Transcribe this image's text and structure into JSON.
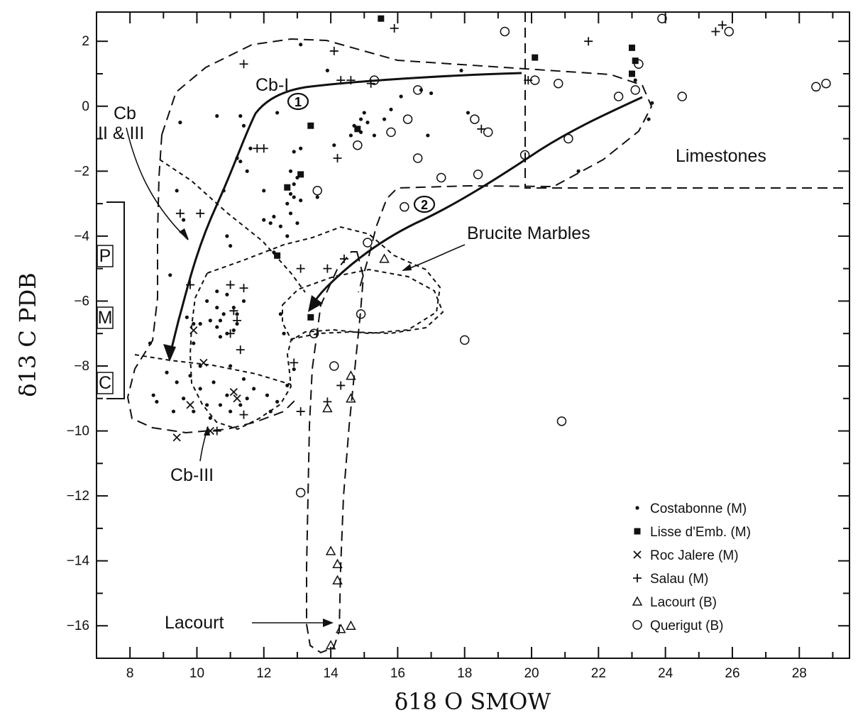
{
  "chart_data": {
    "type": "scatter",
    "xlabel": "δ18 O SMOW",
    "ylabel": "δ13 C PDB",
    "xlim": [
      7,
      29.5
    ],
    "ylim": [
      -17,
      2.9
    ],
    "x_ticks": [
      8,
      10,
      12,
      14,
      16,
      18,
      20,
      22,
      24,
      26,
      28
    ],
    "y_ticks": [
      2,
      0,
      -2,
      -4,
      -6,
      -8,
      -10,
      -12,
      -14,
      -16
    ],
    "grid": false,
    "legend_position": "bottom-right",
    "legend": [
      {
        "label": "Costabonne (M)",
        "marker": "dot"
      },
      {
        "label": "Lisse d'Emb. (M)",
        "marker": "square"
      },
      {
        "label": "Roc Jalere (M)",
        "marker": "x"
      },
      {
        "label": "Salau (M)",
        "marker": "plus"
      },
      {
        "label": "Lacourt (B)",
        "marker": "triangle"
      },
      {
        "label": "Querigut (B)",
        "marker": "circle"
      }
    ],
    "annotations": {
      "cb1": "Cb-I",
      "cb23_line1": "Cb",
      "cb23_line2": "II & III",
      "cb3": "Cb-III",
      "limestones": "Limestones",
      "brucite": "Brucite Marbles",
      "lacourt": "Lacourt",
      "trend1": "1",
      "trend2": "2",
      "p": "P",
      "m": "M",
      "c": "C"
    },
    "series": [
      {
        "name": "Costabonne (M)",
        "marker": "dot",
        "points": [
          [
            13.1,
            1.9
          ],
          [
            13.9,
            1.1
          ],
          [
            11.4,
            -0.6
          ],
          [
            10.6,
            -0.3
          ],
          [
            11.3,
            -0.3
          ],
          [
            9.5,
            -0.5
          ],
          [
            12.4,
            -0.2
          ],
          [
            11.6,
            -1.3
          ],
          [
            11.3,
            -1.7
          ],
          [
            11.5,
            -2.0
          ],
          [
            11.2,
            -1.6
          ],
          [
            10.8,
            -2.6
          ],
          [
            9.4,
            -2.6
          ],
          [
            9.6,
            -3.5
          ],
          [
            12.0,
            -3.5
          ],
          [
            12.2,
            -3.6
          ],
          [
            12.3,
            -3.4
          ],
          [
            12.7,
            -3.0
          ],
          [
            12.9,
            -2.4
          ],
          [
            13.0,
            -2.2
          ],
          [
            12.8,
            -2.0
          ],
          [
            13.1,
            -2.9
          ],
          [
            12.8,
            -3.3
          ],
          [
            13.0,
            -3.6
          ],
          [
            12.9,
            -2.8
          ],
          [
            12.8,
            -2.7
          ],
          [
            12.5,
            -3.7
          ],
          [
            12.0,
            -2.6
          ],
          [
            11.0,
            -4.3
          ],
          [
            10.9,
            -4.0
          ],
          [
            12.3,
            -4.5
          ],
          [
            12.7,
            -4.0
          ],
          [
            13.1,
            -1.3
          ],
          [
            12.9,
            -1.4
          ],
          [
            14.1,
            -1.2
          ],
          [
            14.7,
            -0.6
          ],
          [
            14.9,
            -0.4
          ],
          [
            15.1,
            -0.5
          ],
          [
            15.3,
            -0.9
          ],
          [
            14.9,
            -0.8
          ],
          [
            15.6,
            -0.4
          ],
          [
            14.6,
            -0.9
          ],
          [
            15.0,
            -0.2
          ],
          [
            15.8,
            -0.1
          ],
          [
            16.1,
            0.3
          ],
          [
            16.7,
            0.5
          ],
          [
            17.0,
            0.4
          ],
          [
            16.9,
            -0.9
          ],
          [
            17.9,
            1.1
          ],
          [
            18.1,
            -0.2
          ],
          [
            23.1,
            0.8
          ],
          [
            23.6,
            0.1
          ],
          [
            23.5,
            -0.4
          ],
          [
            21.4,
            -2.0
          ],
          [
            13.6,
            -2.8
          ],
          [
            9.2,
            -5.2
          ],
          [
            9.7,
            -6.5
          ],
          [
            9.9,
            -7.3
          ],
          [
            10.1,
            -6.7
          ],
          [
            10.6,
            -6.2
          ],
          [
            10.7,
            -6.6
          ],
          [
            10.9,
            -7.0
          ],
          [
            11.1,
            -6.9
          ],
          [
            10.7,
            -7.1
          ],
          [
            11.1,
            -6.2
          ],
          [
            11.2,
            -6.7
          ],
          [
            10.9,
            -5.8
          ],
          [
            11.4,
            -6.0
          ],
          [
            10.3,
            -6.0
          ],
          [
            10.6,
            -5.7
          ],
          [
            10.4,
            -6.6
          ],
          [
            11.2,
            -6.4
          ],
          [
            10.8,
            -6.4
          ],
          [
            9.9,
            -6.7
          ],
          [
            10.6,
            -6.8
          ],
          [
            12.5,
            -6.4
          ],
          [
            12.6,
            -7.0
          ],
          [
            8.6,
            -7.3
          ],
          [
            8.7,
            -8.9
          ],
          [
            8.8,
            -9.1
          ],
          [
            9.1,
            -8.2
          ],
          [
            9.4,
            -8.5
          ],
          [
            9.8,
            -8.3
          ],
          [
            10.1,
            -8.7
          ],
          [
            10.3,
            -9.2
          ],
          [
            9.3,
            -9.4
          ],
          [
            9.9,
            -9.4
          ],
          [
            10.5,
            -8.5
          ],
          [
            10.7,
            -9.2
          ],
          [
            11.0,
            -9.4
          ],
          [
            11.3,
            -9.2
          ],
          [
            11.7,
            -8.7
          ],
          [
            12.1,
            -8.9
          ],
          [
            12.2,
            -9.4
          ],
          [
            12.7,
            -8.6
          ],
          [
            12.9,
            -8.1
          ],
          [
            11.5,
            -9.0
          ],
          [
            10.1,
            -8.0
          ],
          [
            9.6,
            -9.0
          ],
          [
            11.0,
            -8.0
          ],
          [
            11.4,
            -8.4
          ],
          [
            10.4,
            -9.6
          ],
          [
            10.9,
            -8.9
          ],
          [
            12.4,
            -9.1
          ]
        ]
      },
      {
        "name": "Lisse d'Emb. (M)",
        "marker": "square",
        "points": [
          [
            15.5,
            2.7
          ],
          [
            20.1,
            1.5
          ],
          [
            23.0,
            1.8
          ],
          [
            23.1,
            1.4
          ],
          [
            23.0,
            1.0
          ],
          [
            13.4,
            -0.6
          ],
          [
            13.1,
            -2.1
          ],
          [
            14.8,
            -0.7
          ],
          [
            12.7,
            -2.5
          ],
          [
            12.4,
            -4.6
          ],
          [
            13.4,
            -6.5
          ]
        ]
      },
      {
        "name": "Roc Jalere (M)",
        "marker": "x",
        "points": [
          [
            9.9,
            -6.9
          ],
          [
            10.2,
            -7.9
          ],
          [
            11.1,
            -8.8
          ],
          [
            11.2,
            -9.0
          ],
          [
            9.8,
            -9.2
          ],
          [
            10.4,
            -10.0
          ],
          [
            9.4,
            -10.2
          ]
        ]
      },
      {
        "name": "Salau (M)",
        "marker": "plus",
        "points": [
          [
            15.9,
            2.4
          ],
          [
            14.1,
            1.7
          ],
          [
            11.4,
            1.3
          ],
          [
            14.3,
            0.8
          ],
          [
            14.6,
            0.8
          ],
          [
            15.2,
            0.7
          ],
          [
            19.9,
            0.8
          ],
          [
            21.7,
            2.0
          ],
          [
            25.5,
            2.3
          ],
          [
            25.7,
            2.5
          ],
          [
            18.5,
            -0.7
          ],
          [
            11.8,
            -1.3
          ],
          [
            12.0,
            -1.3
          ],
          [
            14.2,
            -1.6
          ],
          [
            9.5,
            -3.3
          ],
          [
            10.1,
            -3.3
          ],
          [
            9.8,
            -5.5
          ],
          [
            11.4,
            -5.6
          ],
          [
            11.0,
            -5.5
          ],
          [
            13.1,
            -5.0
          ],
          [
            13.9,
            -5.0
          ],
          [
            14.4,
            -4.7
          ],
          [
            11.1,
            -6.3
          ],
          [
            11.2,
            -6.6
          ],
          [
            11.0,
            -7.0
          ],
          [
            11.3,
            -7.5
          ],
          [
            12.9,
            -7.9
          ],
          [
            13.1,
            -9.4
          ],
          [
            13.9,
            -9.1
          ],
          [
            14.3,
            -8.6
          ],
          [
            11.4,
            -9.5
          ],
          [
            10.6,
            -10.0
          ]
        ]
      },
      {
        "name": "Lacourt (B)",
        "marker": "triangle",
        "points": [
          [
            15.6,
            -4.7
          ],
          [
            14.6,
            -8.3
          ],
          [
            14.6,
            -9.0
          ],
          [
            13.9,
            -9.3
          ],
          [
            14.0,
            -13.7
          ],
          [
            14.2,
            -14.1
          ],
          [
            14.2,
            -14.6
          ],
          [
            14.3,
            -16.1
          ],
          [
            14.6,
            -16.0
          ],
          [
            14.0,
            -16.6
          ]
        ]
      },
      {
        "name": "Querigut (B)",
        "marker": "circle",
        "points": [
          [
            19.2,
            2.3
          ],
          [
            23.9,
            2.7
          ],
          [
            25.9,
            2.3
          ],
          [
            15.3,
            0.8
          ],
          [
            16.6,
            0.5
          ],
          [
            20.1,
            0.8
          ],
          [
            20.8,
            0.7
          ],
          [
            23.2,
            1.3
          ],
          [
            23.1,
            0.5
          ],
          [
            22.6,
            0.3
          ],
          [
            24.5,
            0.3
          ],
          [
            28.5,
            0.6
          ],
          [
            28.8,
            0.7
          ],
          [
            16.3,
            -0.4
          ],
          [
            15.8,
            -0.8
          ],
          [
            18.3,
            -0.4
          ],
          [
            18.7,
            -0.8
          ],
          [
            14.8,
            -1.2
          ],
          [
            16.6,
            -1.6
          ],
          [
            17.3,
            -2.2
          ],
          [
            18.4,
            -2.1
          ],
          [
            19.8,
            -1.5
          ],
          [
            21.1,
            -1.0
          ],
          [
            13.6,
            -2.6
          ],
          [
            16.2,
            -3.1
          ],
          [
            15.1,
            -4.2
          ],
          [
            14.9,
            -6.4
          ],
          [
            13.5,
            -7.0
          ],
          [
            18.0,
            -7.2
          ],
          [
            14.1,
            -8.0
          ],
          [
            20.9,
            -9.7
          ],
          [
            13.1,
            -11.9
          ]
        ]
      }
    ]
  }
}
